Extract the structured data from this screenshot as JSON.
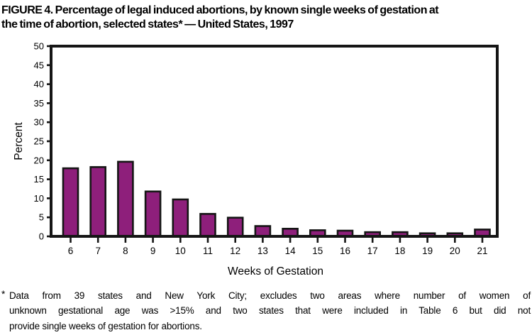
{
  "page": {
    "background": "#ffffff",
    "text_color": "#000000"
  },
  "figure": {
    "title_lines": [
      "FIGURE 4. Percentage of legal induced abortions, by known single weeks of gestation at",
      "the time of abortion, selected states* — United States, 1997"
    ],
    "footnote_marker": "*",
    "footnote_lines": [
      "Data from 39 states and New York City; excludes two areas where number of women of",
      "unknown gestational age was >15% and two states that were included in Table 6 but did not",
      "provide single weeks of gestation for abortions."
    ]
  },
  "chart_data": {
    "type": "bar",
    "title": "FIGURE 4. Percentage of legal induced abortions, by known single weeks of gestation at the time of abortion, selected states — United States, 1997",
    "categories": [
      "6",
      "7",
      "8",
      "9",
      "10",
      "11",
      "12",
      "13",
      "14",
      "15",
      "16",
      "17",
      "18",
      "19",
      "20",
      "21"
    ],
    "values": [
      17.9,
      18.2,
      19.6,
      11.8,
      9.7,
      5.9,
      4.9,
      2.7,
      2.0,
      1.6,
      1.5,
      1.1,
      1.1,
      0.8,
      0.8,
      1.8
    ],
    "xlabel": "Weeks of Gestation",
    "ylabel": "Percent",
    "ylim": [
      0,
      50
    ],
    "ytick_step": 5,
    "grid": false,
    "legend": "none",
    "bar_color": "#8E1F7B",
    "bar_border_color": "#151515",
    "axis_color": "#151515"
  }
}
